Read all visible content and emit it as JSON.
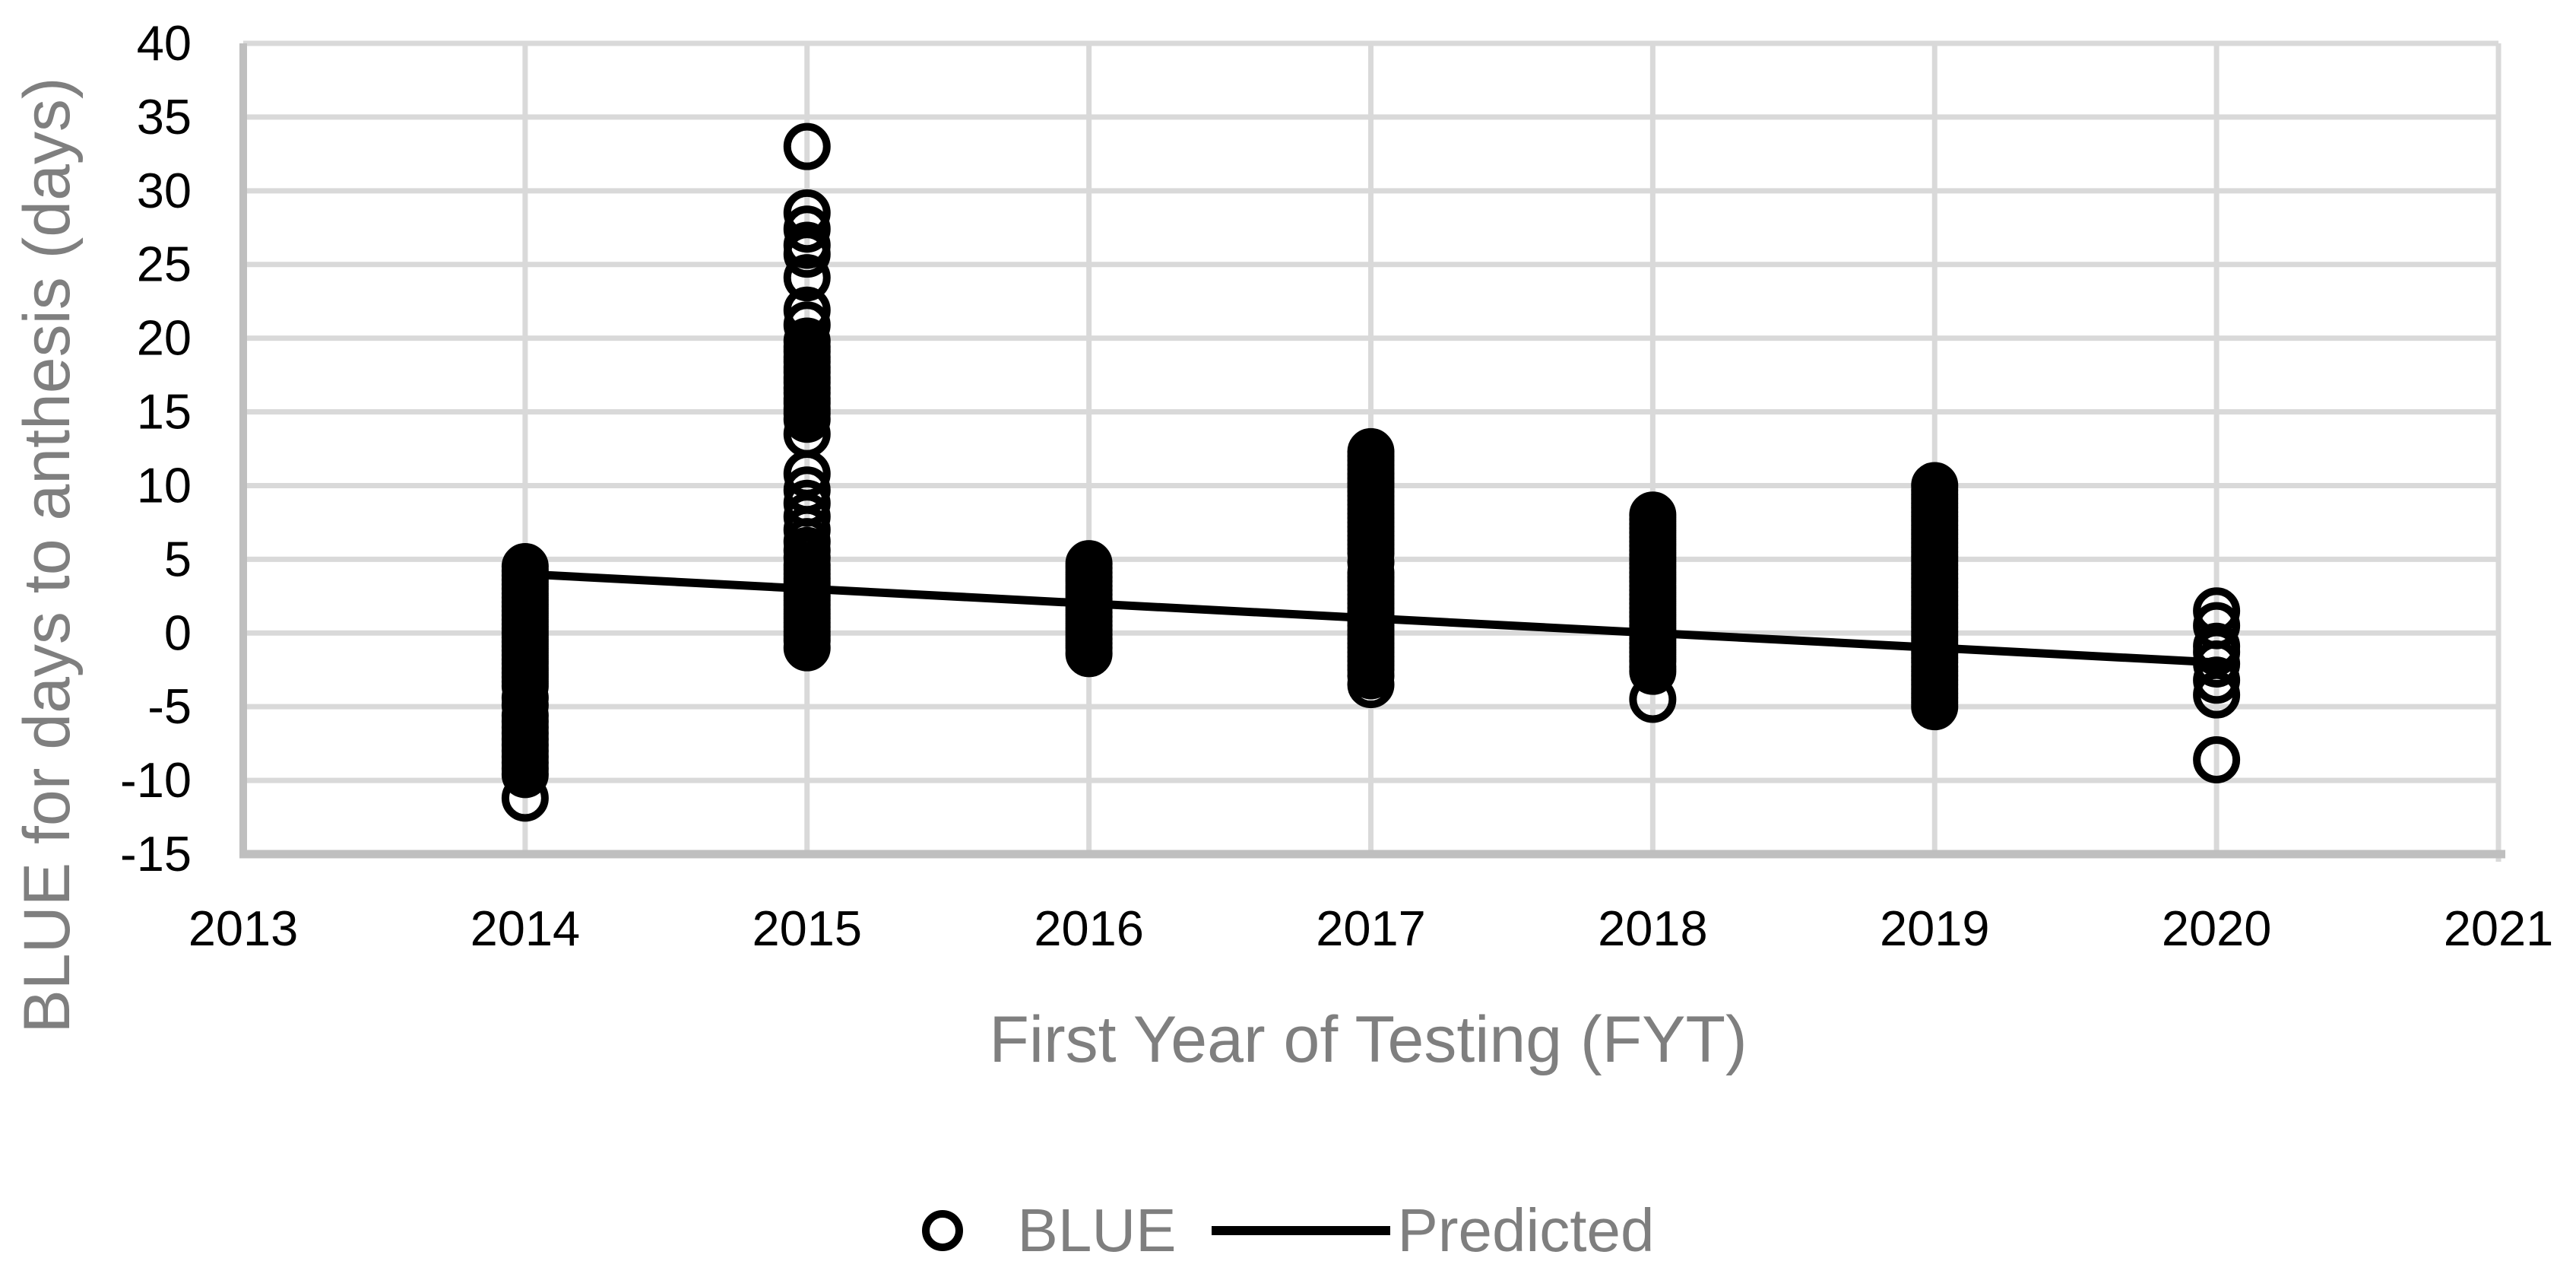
{
  "page": {
    "background": "#FFFFFF"
  },
  "chart_data": {
    "type": "scatter",
    "title": "",
    "xlabel": "First Year of Testing (FYT)",
    "ylabel": "BLUE for days to anthesis (days)",
    "xlim": [
      2013,
      2021
    ],
    "ylim": [
      -15,
      40
    ],
    "xticks": [
      2013,
      2014,
      2015,
      2016,
      2017,
      2018,
      2019,
      2020,
      2021
    ],
    "yticks": [
      40,
      35,
      30,
      25,
      20,
      15,
      10,
      5,
      0,
      -5,
      -10,
      -15
    ],
    "grid": true,
    "legend_position": "bottom-center",
    "colors": {
      "marker": "#000000",
      "predicted_line": "#000000",
      "gridline": "#D9D9D9",
      "axis_line": "#BFBFBF",
      "tick_text": "#000000",
      "title_text": "#7F7F7F"
    },
    "legend": {
      "items": [
        {
          "label": "BLUE",
          "marker": "open-circle"
        },
        {
          "label": "Predicted",
          "marker": "line"
        }
      ]
    },
    "series": [
      {
        "name": "BLUE",
        "type": "scatter",
        "marker": "open-circle",
        "color": "#000000",
        "groups": [
          {
            "x": 2014,
            "values": [
              4.5,
              4.2,
              3.9,
              3.6,
              3.3,
              3.0,
              2.7,
              2.4,
              2.1,
              1.8,
              1.5,
              1.2,
              0.9,
              0.6,
              0.3,
              0.0,
              -0.3,
              -0.6,
              -0.9,
              -1.2,
              -1.5,
              -1.8,
              -2.1,
              -2.4,
              -2.7,
              -3.0,
              -3.3,
              -3.6,
              -4.4,
              -4.9,
              -5.6,
              -6.0,
              -6.4,
              -6.8,
              -7.2,
              -7.6,
              -8.0,
              -8.4,
              -8.8,
              -9.2,
              -9.6,
              -11.2
            ]
          },
          {
            "x": 2015,
            "values": [
              33.0,
              28.5,
              27.4,
              26.3,
              25.7,
              24.1,
              21.9,
              20.9,
              19.8,
              19.4,
              19.1,
              18.7,
              18.4,
              18.0,
              17.7,
              17.3,
              17.0,
              16.6,
              16.3,
              15.9,
              15.6,
              15.2,
              14.9,
              14.5,
              13.5,
              10.8,
              9.7,
              8.8,
              7.9,
              7.0,
              6.2,
              5.6,
              5.1,
              4.6,
              4.3,
              4.0,
              3.7,
              3.4,
              3.1,
              2.8,
              2.5,
              2.2,
              1.9,
              1.6,
              1.3,
              1.0,
              0.7,
              0.4,
              0.1,
              -0.2,
              -0.5,
              -1.0
            ]
          },
          {
            "x": 2016,
            "values": [
              4.7,
              4.4,
              4.1,
              3.8,
              3.5,
              3.2,
              2.9,
              2.6,
              2.3,
              2.0,
              1.7,
              1.4,
              1.1,
              0.8,
              0.5,
              0.2,
              -0.1,
              -0.4,
              -0.7,
              -1.0,
              -1.4
            ]
          },
          {
            "x": 2017,
            "values": [
              12.3,
              12.0,
              11.7,
              11.4,
              11.1,
              10.8,
              10.5,
              10.2,
              9.9,
              9.6,
              9.3,
              9.0,
              8.7,
              8.4,
              8.1,
              7.8,
              7.5,
              7.2,
              6.9,
              6.6,
              6.3,
              6.0,
              5.7,
              5.4,
              4.8,
              4.1,
              3.8,
              3.5,
              3.2,
              2.9,
              2.6,
              2.3,
              2.0,
              1.7,
              1.4,
              1.1,
              0.8,
              0.5,
              0.2,
              -0.1,
              -0.4,
              -0.7,
              -1.0,
              -1.3,
              -1.6,
              -1.9,
              -2.2,
              -2.5,
              -2.9,
              -3.5
            ]
          },
          {
            "x": 2018,
            "values": [
              8.0,
              7.7,
              7.4,
              7.1,
              6.8,
              6.5,
              6.2,
              5.9,
              5.6,
              5.3,
              5.0,
              4.7,
              4.4,
              4.1,
              3.8,
              3.5,
              3.2,
              2.9,
              2.6,
              2.3,
              2.0,
              1.7,
              1.4,
              1.1,
              0.8,
              0.5,
              0.2,
              -0.1,
              -0.4,
              -0.7,
              -1.0,
              -1.3,
              -1.6,
              -1.9,
              -2.3,
              -2.6,
              -4.5
            ]
          },
          {
            "x": 2019,
            "values": [
              10.0,
              9.7,
              9.4,
              9.1,
              8.8,
              8.5,
              8.2,
              7.9,
              7.6,
              7.3,
              7.0,
              6.7,
              6.4,
              6.1,
              5.8,
              5.5,
              5.2,
              4.9,
              4.6,
              4.3,
              4.0,
              3.7,
              3.4,
              3.1,
              2.8,
              2.5,
              2.2,
              1.9,
              1.6,
              1.3,
              1.0,
              0.7,
              0.4,
              0.1,
              -0.2,
              -0.5,
              -0.8,
              -1.1,
              -1.4,
              -1.7,
              -2.0,
              -2.3,
              -2.6,
              -2.9,
              -3.2,
              -3.5,
              -3.8,
              -4.1,
              -4.4,
              -4.7,
              -5.0
            ]
          },
          {
            "x": 2020,
            "values": [
              1.5,
              0.5,
              -0.9,
              -1.3,
              -2.1,
              -3.2,
              -4.2,
              -8.6
            ]
          }
        ]
      },
      {
        "name": "Predicted",
        "type": "line",
        "color": "#000000",
        "x": [
          2014,
          2020
        ],
        "y": [
          4.0,
          -2.0
        ]
      }
    ]
  }
}
